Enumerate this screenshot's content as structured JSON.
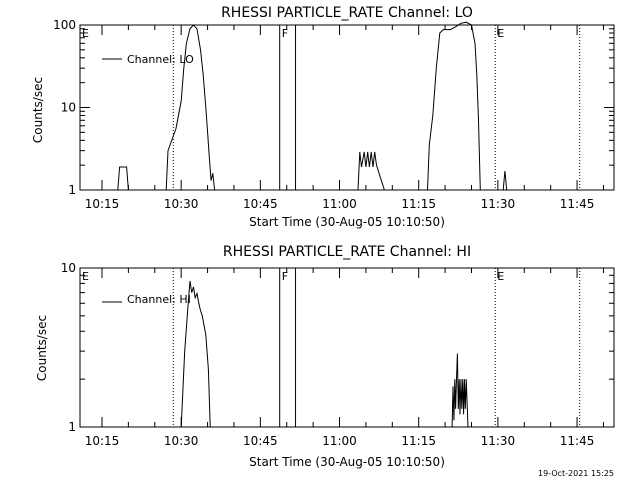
{
  "footer": {
    "timestamp": "19-Oct-2021 15:25"
  },
  "chart_data": [
    {
      "type": "line",
      "title": "RHESSI PARTICLE_RATE Channel: LO",
      "xlabel": "Start Time (30-Aug-05 10:10:50)",
      "ylabel": "Counts/sec",
      "y_scale": "log",
      "ylim": [
        1,
        100
      ],
      "xlim": [
        "10:10:50",
        "11:52:00"
      ],
      "x_ticks": [
        "10:15",
        "10:30",
        "10:45",
        "11:00",
        "11:15",
        "11:30",
        "11:45"
      ],
      "y_ticks": [
        "1",
        "10",
        "100"
      ],
      "legend": {
        "label": "Channel: LO",
        "placement": "top-left"
      },
      "markers": [
        {
          "label": "E",
          "time": "10:10:50",
          "style": "none"
        },
        {
          "label": "",
          "time": "10:28:30",
          "style": "dotted"
        },
        {
          "label": "F",
          "time": "10:48:40",
          "style": "solid"
        },
        {
          "label": "",
          "time": "10:51:40",
          "style": "solid"
        },
        {
          "label": "E",
          "time": "11:29:30",
          "style": "dotted"
        },
        {
          "label": "",
          "time": "11:45:30",
          "style": "dotted"
        }
      ],
      "series": [
        {
          "segments": [
            [
              [
                "10:18:00",
                1
              ],
              [
                "10:18:20",
                1.9
              ],
              [
                "10:19:40",
                1.9
              ],
              [
                "10:20:00",
                1
              ]
            ],
            [
              [
                "10:27:10",
                1
              ],
              [
                "10:27:30",
                3
              ],
              [
                "10:29:00",
                5.5
              ],
              [
                "10:30:00",
                12
              ],
              [
                "10:30:30",
                30
              ],
              [
                "10:31:00",
                60
              ],
              [
                "10:31:40",
                90
              ],
              [
                "10:32:20",
                100
              ],
              [
                "10:33:00",
                90
              ],
              [
                "10:33:40",
                50
              ],
              [
                "10:34:10",
                25
              ],
              [
                "10:34:40",
                10
              ],
              [
                "10:35:00",
                5
              ],
              [
                "10:35:20",
                2.5
              ],
              [
                "10:35:40",
                1.3
              ],
              [
                "10:36:00",
                1.6
              ],
              [
                "10:36:20",
                1
              ]
            ],
            [
              [
                "11:03:30",
                1
              ],
              [
                "11:03:50",
                2.9
              ],
              [
                "11:04:10",
                1.9
              ],
              [
                "11:04:40",
                2.9
              ],
              [
                "11:05:00",
                1.9
              ],
              [
                "11:05:20",
                2.9
              ],
              [
                "11:05:40",
                1.9
              ],
              [
                "11:06:00",
                2.9
              ],
              [
                "11:06:20",
                1.9
              ],
              [
                "11:06:40",
                2.9
              ],
              [
                "11:07:00",
                2
              ],
              [
                "11:08:30",
                1
              ]
            ],
            [
              [
                "11:16:40",
                1
              ],
              [
                "11:17:00",
                3.5
              ],
              [
                "11:17:40",
                8
              ],
              [
                "11:18:20",
                30
              ],
              [
                "11:19:00",
                80
              ],
              [
                "11:19:40",
                88
              ],
              [
                "11:21:00",
                88
              ],
              [
                "11:22:00",
                95
              ],
              [
                "11:23:00",
                105
              ],
              [
                "11:24:00",
                108
              ],
              [
                "11:25:00",
                100
              ],
              [
                "11:25:40",
                60
              ],
              [
                "11:26:00",
                25
              ],
              [
                "11:26:20",
                7
              ],
              [
                "11:26:40",
                1
              ]
            ],
            [
              [
                "11:31:00",
                1
              ],
              [
                "11:31:20",
                1.7
              ],
              [
                "11:31:40",
                1
              ]
            ]
          ]
        }
      ]
    },
    {
      "type": "line",
      "title": "RHESSI PARTICLE_RATE Channel: HI",
      "xlabel": "Start Time (30-Aug-05 10:10:50)",
      "ylabel": "Counts/sec",
      "y_scale": "log",
      "ylim": [
        1,
        10
      ],
      "xlim": [
        "10:10:50",
        "11:52:00"
      ],
      "x_ticks": [
        "10:15",
        "10:30",
        "10:45",
        "11:00",
        "11:15",
        "11:30",
        "11:45"
      ],
      "y_ticks": [
        "1",
        "10"
      ],
      "legend": {
        "label": "Channel: HI",
        "placement": "top-left"
      },
      "markers": [
        {
          "label": "E",
          "time": "10:10:50",
          "style": "none"
        },
        {
          "label": "",
          "time": "10:28:30",
          "style": "dotted"
        },
        {
          "label": "F",
          "time": "10:48:40",
          "style": "solid"
        },
        {
          "label": "",
          "time": "10:51:40",
          "style": "solid"
        },
        {
          "label": "E",
          "time": "11:29:30",
          "style": "dotted"
        },
        {
          "label": "",
          "time": "11:45:30",
          "style": "dotted"
        }
      ],
      "series": [
        {
          "segments": [
            [
              [
                "10:30:00",
                1
              ],
              [
                "10:30:40",
                3
              ],
              [
                "10:31:20",
                6
              ],
              [
                "10:31:40",
                8.3
              ],
              [
                "10:32:00",
                7
              ],
              [
                "10:32:20",
                7.6
              ],
              [
                "10:32:40",
                6.5
              ],
              [
                "10:33:00",
                6.9
              ],
              [
                "10:33:20",
                6
              ],
              [
                "10:33:40",
                5.4
              ],
              [
                "10:34:00",
                5
              ],
              [
                "10:34:40",
                3.8
              ],
              [
                "10:35:10",
                2.3
              ],
              [
                "10:35:30",
                1
              ]
            ],
            [
              [
                "11:21:20",
                1
              ],
              [
                "11:21:30",
                1.8
              ],
              [
                "11:21:40",
                1.1
              ],
              [
                "11:21:50",
                2
              ],
              [
                "11:22:00",
                1.3
              ],
              [
                "11:22:10",
                2
              ],
              [
                "11:22:20",
                2.9
              ],
              [
                "11:22:30",
                1.3
              ],
              [
                "11:22:40",
                2
              ],
              [
                "11:22:50",
                1.2
              ],
              [
                "11:23:00",
                2
              ],
              [
                "11:23:10",
                1.3
              ],
              [
                "11:23:20",
                2
              ],
              [
                "11:23:30",
                1.2
              ],
              [
                "11:23:40",
                2
              ],
              [
                "11:23:50",
                1.3
              ],
              [
                "11:24:00",
                2
              ],
              [
                "11:24:20",
                1
              ]
            ]
          ]
        }
      ]
    }
  ]
}
